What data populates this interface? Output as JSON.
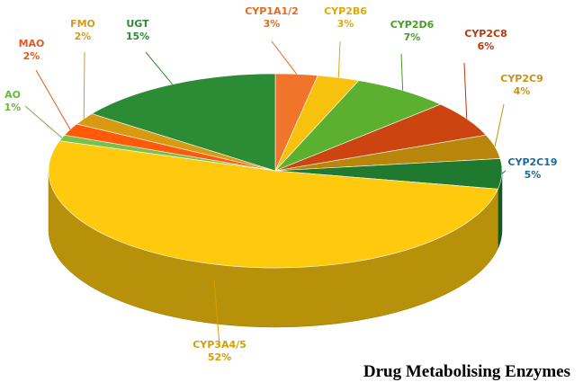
{
  "chart_data": {
    "type": "pie",
    "title": "Drug Metabolising Enzymes",
    "slices": [
      {
        "label": "CYP1A1/2",
        "value": 3,
        "display": "3%",
        "color": "#f0742a",
        "label_color": "#e36a1e"
      },
      {
        "label": "CYP2B6",
        "value": 3,
        "display": "3%",
        "color": "#f6c20e",
        "label_color": "#e0a800"
      },
      {
        "label": "CYP2D6",
        "value": 7,
        "display": "7%",
        "color": "#5cb030",
        "label_color": "#4a9a2a"
      },
      {
        "label": "CYP2C8",
        "value": 6,
        "display": "6%",
        "color": "#cc4511",
        "label_color": "#b8390f"
      },
      {
        "label": "CYP2C9",
        "value": 4,
        "display": "4%",
        "color": "#b8860b",
        "label_color": "#c79312"
      },
      {
        "label": "CYP2C19",
        "value": 5,
        "display": "5%",
        "color": "#1f7a30",
        "label_color": "#1a6a9a"
      },
      {
        "label": "CYP3A4/5",
        "value": 52,
        "display": "52%",
        "color": "#ffc90e",
        "label_color": "#d59f00"
      },
      {
        "label": "AO",
        "value": 1,
        "display": "1%",
        "color": "#79c24a",
        "label_color": "#6ab63f"
      },
      {
        "label": "MAO",
        "value": 2,
        "display": "2%",
        "color": "#ff5a0a",
        "label_color": "#e05a1e"
      },
      {
        "label": "FMO",
        "value": 2,
        "display": "2%",
        "color": "#d79a10",
        "label_color": "#d29a1a"
      },
      {
        "label": "UGT",
        "value": 15,
        "display": "15%",
        "color": "#2b8c35",
        "label_color": "#2f8a37"
      }
    ]
  }
}
